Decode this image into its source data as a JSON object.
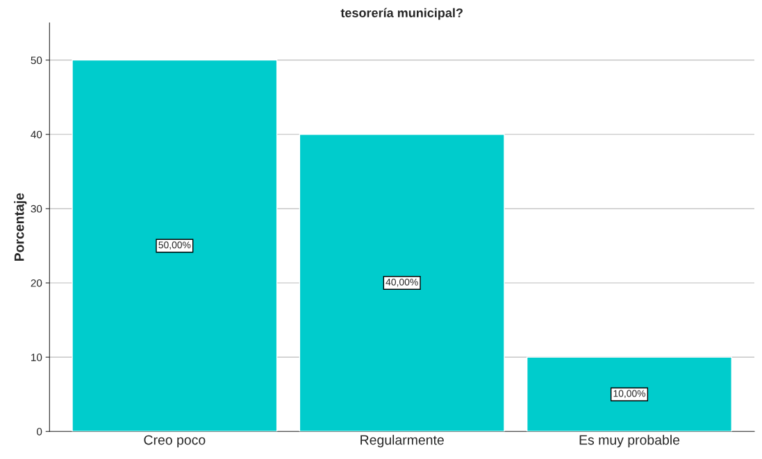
{
  "chart_data": {
    "type": "bar",
    "title": "tesorería municipal?",
    "ylabel": "Porcentaje",
    "categories": [
      "Creo poco",
      "Regularmente",
      "Es muy probable"
    ],
    "values": [
      50,
      40,
      10
    ],
    "color": "#00cccc",
    "value_labels": [
      "50,00%",
      "40,00%",
      "10,00%"
    ],
    "ylim": [
      0,
      55
    ],
    "yticks": [
      0,
      10,
      20,
      30,
      40,
      50
    ],
    "grid": "y",
    "legend": false
  }
}
